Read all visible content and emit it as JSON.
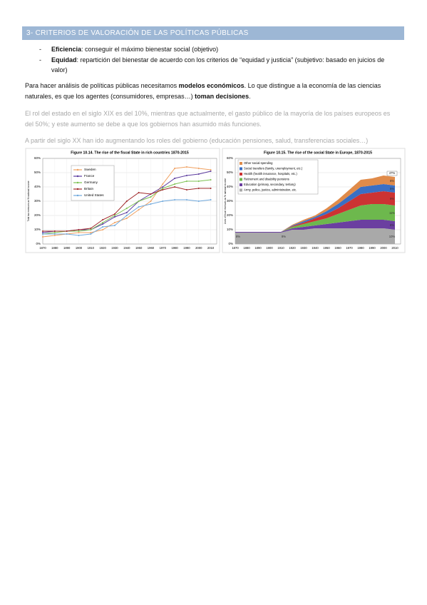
{
  "header": {
    "title": "3- CRITERIOS DE VALORACIÓN DE LAS POLÍTICAS PÚBLICAS"
  },
  "bullets": [
    {
      "term": "Eficiencia",
      "text": ": conseguir el máximo bienestar social (objetivo)"
    },
    {
      "term": "Equidad",
      "text": ": repartición del bienestar de acuerdo con los criterios de “equidad y justicia” (subjetivo: basado en juicios de valor)"
    }
  ],
  "paragraph": [
    "Para hacer análisis de políticas públicas necesitamos ",
    "modelos económicos",
    ". Lo que distingue a la economía de las ciencias naturales, es que los agentes (consumidores, empresas…) ",
    "toman decisiones",
    "."
  ],
  "notes": [
    "El rol del estado en el siglo XIX es del 10%, mientras que actualmente, el gasto público de la mayoría de los países europeos es del 50%; y este aumento se debe a que los gobiernos han asumido más funciones.",
    "A partir del siglo XX han ido augmentando los roles del gobierno (educación pensiones, salud, transferencias sociales…)"
  ],
  "chart_data": [
    {
      "type": "line",
      "title": "Figure 10.14. The rise of the fiscal State in rich countries 1870-2015",
      "y_label": "Total tax revenues as % national income",
      "x": [
        1870,
        1880,
        1890,
        1900,
        1910,
        1920,
        1930,
        1940,
        1950,
        1960,
        1970,
        1980,
        1990,
        2000,
        2010
      ],
      "xlim": [
        1870,
        2015
      ],
      "xticks": [
        1870,
        1880,
        1890,
        1900,
        1910,
        1920,
        1930,
        1940,
        1950,
        1960,
        1970,
        1980,
        1990,
        2000,
        2010
      ],
      "ylim": [
        0,
        60
      ],
      "yticks": [
        {
          "value": 0,
          "label": "0%"
        },
        {
          "value": 10,
          "label": "10%"
        },
        {
          "value": 20,
          "label": "20%"
        },
        {
          "value": 30,
          "label": "30%"
        },
        {
          "value": 40,
          "label": "40%"
        },
        {
          "value": 50,
          "label": "50%"
        },
        {
          "value": 60,
          "label": "60%"
        }
      ],
      "grid": true,
      "legend": "upper left",
      "series": [
        {
          "name": "Sweden",
          "color": "#f0a060",
          "values": [
            5,
            6,
            7,
            8,
            8,
            10,
            15,
            18,
            24,
            30,
            42,
            53,
            54,
            53,
            52
          ]
        },
        {
          "name": "France",
          "color": "#5b3a9e",
          "values": [
            8,
            9,
            9,
            10,
            10,
            14,
            19,
            22,
            30,
            35,
            40,
            46,
            48,
            49,
            51
          ]
        },
        {
          "name": "Germany",
          "color": "#7cc050",
          "values": [
            7,
            8,
            9,
            9,
            10,
            15,
            20,
            25,
            30,
            33,
            39,
            42,
            44,
            44,
            45
          ]
        },
        {
          "name": "Britain",
          "color": "#a0282a",
          "values": [
            9,
            9,
            9,
            10,
            11,
            17,
            21,
            30,
            36,
            35,
            38,
            40,
            38,
            39,
            39
          ]
        },
        {
          "name": "United States",
          "color": "#6fa8dc",
          "values": [
            7,
            7,
            7,
            6,
            7,
            12,
            13,
            20,
            26,
            28,
            30,
            31,
            31,
            30,
            31
          ]
        }
      ]
    },
    {
      "type": "area",
      "title": "Figure 10.15. The rise of the social State in Europe, 1870-2015",
      "y_label": "Uses of fiscal revenues as % national income",
      "x": [
        1870,
        1880,
        1890,
        1900,
        1910,
        1920,
        1930,
        1940,
        1950,
        1960,
        1970,
        1980,
        1990,
        2000,
        2010
      ],
      "xlim": [
        1870,
        2015
      ],
      "xticks": [
        1870,
        1880,
        1890,
        1900,
        1910,
        1920,
        1930,
        1940,
        1950,
        1960,
        1970,
        1980,
        1990,
        2000,
        2010
      ],
      "ylim": [
        0,
        60
      ],
      "yticks": [
        {
          "value": 0,
          "label": "0%"
        },
        {
          "value": 10,
          "label": "10%"
        },
        {
          "value": 20,
          "label": "20%"
        },
        {
          "value": 30,
          "label": "30%"
        },
        {
          "value": 40,
          "label": "40%"
        },
        {
          "value": 50,
          "label": "50%"
        },
        {
          "value": 60,
          "label": "60%"
        }
      ],
      "grid": true,
      "legend": "upper left",
      "total": {
        "value": 47,
        "label": "47%"
      },
      "series": [
        {
          "name": "Army, police, justice, administration, etc.",
          "color": "#a9a9a9",
          "values": [
            8,
            8,
            8,
            8,
            8,
            10,
            10,
            11,
            11,
            11,
            11,
            11,
            11,
            11,
            10
          ],
          "value_labels": [
            "8%",
            null,
            null,
            null,
            "8%",
            null,
            null,
            null,
            null,
            null,
            null,
            null,
            null,
            null,
            "10%"
          ]
        },
        {
          "name": "Education (primary, secondary, tertiary)",
          "color": "#6b3fa0",
          "values": [
            0.5,
            0.5,
            0.5,
            0.5,
            0.5,
            1,
            2,
            2,
            3,
            4,
            5,
            6,
            6,
            6,
            6
          ],
          "value_labels": [
            null,
            null,
            null,
            null,
            null,
            null,
            null,
            null,
            null,
            null,
            null,
            null,
            null,
            null,
            "6%"
          ]
        },
        {
          "name": "Retirement and disability pensions",
          "color": "#6db84d",
          "values": [
            0,
            0,
            0,
            0,
            0,
            1,
            2,
            3,
            4,
            6,
            8,
            10,
            11,
            11,
            11
          ],
          "value_labels": [
            null,
            null,
            null,
            null,
            null,
            null,
            null,
            null,
            null,
            null,
            null,
            null,
            null,
            null,
            "11%"
          ]
        },
        {
          "name": "Health (health insurance, hospitals, etc.)",
          "color": "#cc3333",
          "values": [
            0,
            0,
            0,
            0,
            0,
            0.5,
            1,
            2,
            3,
            4,
            6,
            8,
            8,
            9,
            9
          ],
          "value_labels": [
            null,
            null,
            null,
            null,
            null,
            null,
            null,
            null,
            null,
            null,
            null,
            null,
            null,
            null,
            "9%"
          ]
        },
        {
          "name": "Social transfers (family, unemployment, etc.)",
          "color": "#3a6fc4",
          "values": [
            0,
            0,
            0,
            0,
            0,
            0.5,
            1,
            1,
            2,
            3,
            4,
            5,
            5,
            5,
            5
          ],
          "value_labels": [
            null,
            null,
            null,
            null,
            null,
            null,
            null,
            null,
            null,
            null,
            null,
            null,
            null,
            null,
            "5%"
          ]
        },
        {
          "name": "Other social spending",
          "color": "#e08b4a",
          "values": [
            0,
            0,
            0,
            0,
            0,
            0.5,
            1,
            1,
            2,
            3,
            4,
            5,
            5,
            6,
            6
          ],
          "value_labels": [
            null,
            null,
            null,
            null,
            null,
            null,
            null,
            null,
            null,
            null,
            null,
            null,
            null,
            null,
            "6%"
          ]
        }
      ]
    }
  ]
}
